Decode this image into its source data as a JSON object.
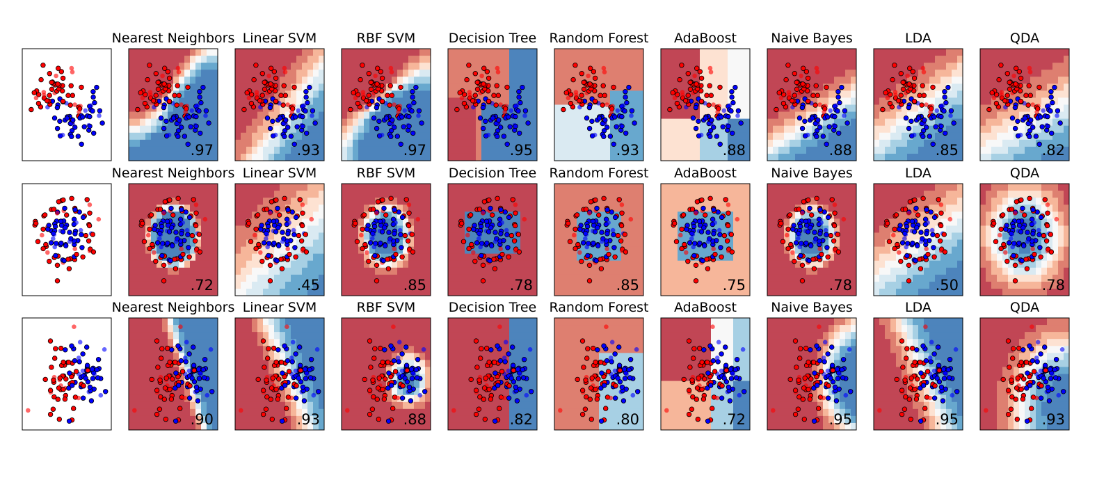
{
  "chart_data": {
    "type": "classifier_comparison_grid",
    "colors": {
      "class_0_point": "#ff0000",
      "class_1_point": "#0000ff",
      "class_0_region": "#b2182b",
      "class_1_region": "#2166ac",
      "point_edge": "#000000"
    },
    "classifiers": [
      "Nearest Neighbors",
      "Linear SVM",
      "RBF SVM",
      "Decision Tree",
      "Random Forest",
      "AdaBoost",
      "Naive Bayes",
      "LDA",
      "QDA"
    ],
    "datasets": [
      {
        "name": "moons",
        "scores": [
          ".97",
          ".93",
          ".97",
          ".95",
          ".93",
          ".88",
          ".88",
          ".85",
          ".82"
        ],
        "score_values": [
          0.97,
          0.93,
          0.97,
          0.95,
          0.93,
          0.88,
          0.88,
          0.85,
          0.82
        ]
      },
      {
        "name": "circles",
        "scores": [
          ".72",
          ".45",
          ".85",
          ".78",
          ".85",
          ".75",
          ".78",
          ".50",
          ".78"
        ],
        "score_values": [
          0.72,
          0.45,
          0.85,
          0.78,
          0.85,
          0.75,
          0.78,
          0.5,
          0.78
        ]
      },
      {
        "name": "linearly_separable",
        "scores": [
          ".90",
          ".93",
          ".88",
          ".82",
          ".80",
          ".72",
          ".95",
          ".95",
          ".93"
        ],
        "score_values": [
          0.9,
          0.93,
          0.88,
          0.82,
          0.8,
          0.72,
          0.95,
          0.95,
          0.93
        ]
      }
    ]
  }
}
